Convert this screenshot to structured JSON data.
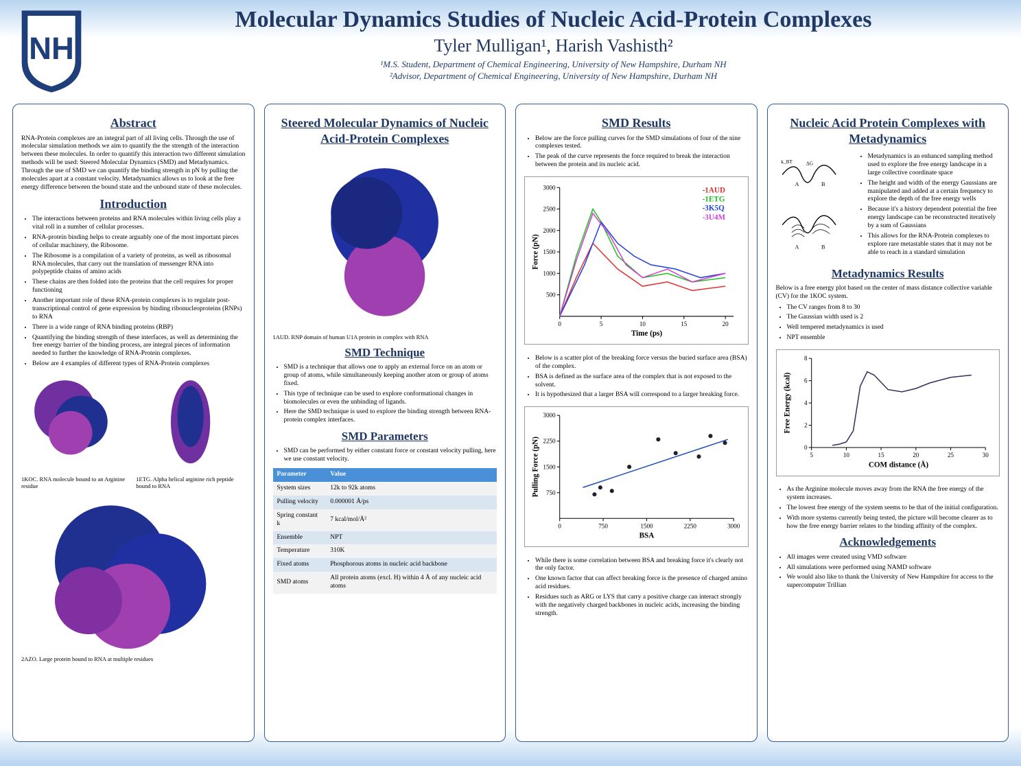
{
  "header": {
    "title": "Molecular Dynamics Studies of Nucleic Acid-Protein Complexes",
    "authors": "Tyler Mulligan¹, Harish Vashisth²",
    "affil1": "¹M.S. Student, Department of Chemical Engineering, University of New Hampshire, Durham NH",
    "affil2": "²Advisor, Department of Chemical Engineering, University of New Hampshire, Durham NH"
  },
  "col1": {
    "abstract_title": "Abstract",
    "abstract_text": "RNA-Protein complexes are an integral part of all living cells. Through the use of molecular simulation methods we aim to quantify the the strength of the interaction between these molecules. In order to quantify this interaction two different simulation methods will be used: Steered Molecular Dynamics (SMD) and Metadynamics. Through the use of SMD we can quantify the binding strength in pN by pulling the molecules apart at a constant velocity. Metadynamics allows us to look at the free energy difference between the bound state and the unbound state of these molecules.",
    "intro_title": "Introduction",
    "intro_bullets": [
      "The interactions between proteins and RNA molecules within living cells play a vital roll in a number of cellular processes.",
      "RNA-protein binding helps to create arguably one of the most important pieces of cellular machinery, the Ribosome.",
      "The Ribosome is a compilation of a variety of proteins, as well as ribosomal RNA molecules, that carry out the translation of messenger RNA into polypeptide chains of amino acids",
      "These chains are then folded into the proteins that the cell requires for proper functioning",
      "Another important role of these RNA-protein complexes is to regulate post-transcriptional control of gene expression by binding ribonucleoproteins (RNPs) to RNA",
      "There is a wide range of RNA binding proteins (RBP)",
      "Quantifying the binding strength of these interfaces, as well as determining the free energy barrier of the binding process, are integral pieces of information needed to further the knowledge of RNA-Protein complexes.",
      "Below are 4 examples of different types of RNA-Protein complexes"
    ],
    "cap_1koc": "1KOC. RNA molecule bound to an Arginine residue",
    "cap_1etg": "1ETG. Alpha helical arginine rich peptide bound to RNA",
    "cap_2azo": "2AZO. Large protein bound to RNA at multiple residues"
  },
  "col2": {
    "title": "Steered Molecular Dynamics of Nucleic Acid-Protein Complexes",
    "cap_1aud": "1AUD. RNP domain of human U1A protein in complex with RNA",
    "tech_title": "SMD Technique",
    "tech_bullets": [
      "SMD is a technique that allows one to apply an external force on an atom or group of atoms, while simultaneously keeping another atom or group of atoms fixed.",
      "This type of technique can be used to explore conformational changes in biomolecules or even the unbinding of ligands.",
      "Here the SMD technique is used to explore the binding strength between RNA-protein complex interfaces."
    ],
    "param_title": "SMD Parameters",
    "param_bullets": [
      "SMD can be performed by either constant force or constant velocity pulling, here we use constant velocity."
    ],
    "table": {
      "header": [
        "Parameter",
        "Value"
      ],
      "rows": [
        [
          "System sizes",
          "12k to 92k atoms"
        ],
        [
          "Pulling velocity",
          "0.000001 Å/ps"
        ],
        [
          "Spring constant k",
          "7 kcal/mol/Å²"
        ],
        [
          "Ensemble",
          "NPT"
        ],
        [
          "Temperature",
          "310K"
        ],
        [
          "Fixed atoms",
          "Phosphorous atoms in nucleic acid backbone"
        ],
        [
          "SMD atoms",
          "All protein atoms (excl. H) within 4 Å of any nucleic acid atoms"
        ]
      ]
    }
  },
  "col3": {
    "title": "SMD Results",
    "top_bullets": [
      "Below are the force pulling curves for the SMD simulations of four of the nine complexes tested.",
      "The peak of the curve represents the force required to break the interaction between the protein and its nucleic acid."
    ],
    "force_chart": {
      "type": "line",
      "xlabel": "Time (ps)",
      "ylabel": "Force (pN)",
      "xlim": [
        0,
        21
      ],
      "ylim": [
        0,
        3000
      ],
      "xticks": [
        0,
        5,
        10,
        15,
        20
      ],
      "yticks": [
        500,
        1000,
        1500,
        2000,
        2500,
        3000
      ],
      "series": [
        {
          "name": "-1AUD",
          "color": "#e03030",
          "points": [
            [
              0,
              0
            ],
            [
              2,
              900
            ],
            [
              4,
              1700
            ],
            [
              5,
              1500
            ],
            [
              7,
              1100
            ],
            [
              10,
              700
            ],
            [
              13,
              800
            ],
            [
              16,
              600
            ],
            [
              20,
              700
            ]
          ]
        },
        {
          "name": "-1ETG",
          "color": "#20c020",
          "points": [
            [
              0,
              0
            ],
            [
              2,
              1400
            ],
            [
              4,
              2500
            ],
            [
              5,
              2200
            ],
            [
              7,
              1400
            ],
            [
              10,
              900
            ],
            [
              13,
              1000
            ],
            [
              16,
              800
            ],
            [
              20,
              900
            ]
          ]
        },
        {
          "name": "-3K5Q",
          "color": "#2040e0",
          "points": [
            [
              0,
              0
            ],
            [
              3,
              1200
            ],
            [
              5,
              2200
            ],
            [
              7,
              1700
            ],
            [
              9,
              1400
            ],
            [
              11,
              1200
            ],
            [
              14,
              1100
            ],
            [
              17,
              900
            ],
            [
              20,
              1000
            ]
          ]
        },
        {
          "name": "-3U4M",
          "color": "#d040d0",
          "points": [
            [
              0,
              0
            ],
            [
              2,
              1300
            ],
            [
              4,
              2400
            ],
            [
              6,
              1900
            ],
            [
              8,
              1200
            ],
            [
              10,
              900
            ],
            [
              13,
              1100
            ],
            [
              16,
              800
            ],
            [
              20,
              1000
            ]
          ]
        }
      ]
    },
    "mid_bullets": [
      "Below is a scatter plot of the breaking force versus the buried surface area (BSA) of the complex.",
      "BSA is defined as the surface area of the complex that is not exposed to the solvent.",
      "It is hypothesized that a larger BSA will correspond to a larger breaking force."
    ],
    "scatter_chart": {
      "type": "scatter",
      "xlabel": "BSA",
      "ylabel": "Pulling Force (pN)",
      "xlim": [
        0,
        3000
      ],
      "ylim": [
        0,
        3000
      ],
      "xticks": [
        0,
        750,
        1500,
        2250,
        3000
      ],
      "yticks": [
        750,
        1500,
        2250,
        3000
      ],
      "points": [
        [
          600,
          700
        ],
        [
          700,
          900
        ],
        [
          900,
          800
        ],
        [
          1200,
          1500
        ],
        [
          1700,
          2300
        ],
        [
          2000,
          1900
        ],
        [
          2400,
          1800
        ],
        [
          2600,
          2400
        ],
        [
          2850,
          2200
        ]
      ],
      "trend": [
        [
          400,
          900
        ],
        [
          2900,
          2300
        ]
      ],
      "trend_color": "#2050b0"
    },
    "bottom_bullets": [
      "While there is some correlation between BSA and breaking force it's clearly not the only factor.",
      "One known factor that can affect breaking force is the presence of charged amino acid residues.",
      "Residues such as ARG or LYS that carry a positive charge can interact strongly with the negatively charged backbones in nucleic acids, increasing the binding strength."
    ]
  },
  "col4": {
    "title": "Nucleic Acid Protein Complexes with Metadynamics",
    "meta_bullets": [
      "Metadynamics is an enhanced sampling method used to explore the free energy landscape in a large collective coordinate space",
      "The height and width of the energy Gaussians are manipulated and added at a certain frequency to explore the depth of the free energy wells",
      "Because it's a history dependent potential the free energy landscape can be reconstructed iteratively by a sum of Gaussians",
      "This allows for the RNA-Protein complexes to explore rare metastable states that it may not be able to reach in a standard simulation"
    ],
    "results_title": "Metadynamics Results",
    "results_intro": "Below is a free energy plot based on the center of mass distance collective variable (CV) for the 1KOC system.",
    "results_bullets": [
      "The CV ranges from 8 to 30",
      "The Gaussian width used is 2",
      "Well tempered metadynamics is used",
      "NPT ensemble"
    ],
    "fe_chart": {
      "type": "line",
      "xlabel": "COM distance (Å)",
      "ylabel": "Free Energy (kcal)",
      "xlim": [
        5,
        30
      ],
      "ylim": [
        0,
        8
      ],
      "xticks": [
        5,
        10,
        15,
        20,
        25,
        30
      ],
      "yticks": [
        0,
        2,
        4,
        6,
        8
      ],
      "points": [
        [
          8,
          0.2
        ],
        [
          9,
          0.3
        ],
        [
          10,
          0.5
        ],
        [
          11,
          1.5
        ],
        [
          12,
          5.5
        ],
        [
          13,
          6.8
        ],
        [
          14,
          6.5
        ],
        [
          16,
          5.2
        ],
        [
          18,
          5.0
        ],
        [
          20,
          5.3
        ],
        [
          22,
          5.8
        ],
        [
          25,
          6.3
        ],
        [
          28,
          6.5
        ]
      ],
      "color": "#303060"
    },
    "post_bullets": [
      "As the Arginine molecule moves away from the RNA the free energy of the system increases.",
      "The lowest free energy of the system seems to be that of the initial configuration.",
      "With more systems currently being tested, the picture will become clearer as to how the free energy barrier relates to the binding affinity of the complex."
    ],
    "ack_title": "Acknowledgements",
    "ack_bullets": [
      "All images were created using VMD software",
      "All simulations were performed using NAMD software",
      "We would also like to thank the University of New Hampshire for access to the supercomputer Trillian"
    ]
  }
}
